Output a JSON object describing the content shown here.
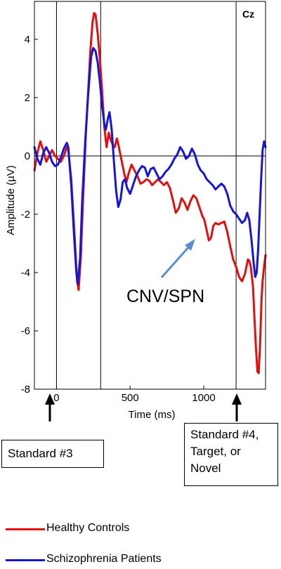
{
  "chart_data": {
    "type": "line",
    "panel_label": "Cz",
    "xlabel": "Time (ms)",
    "ylabel": "Amplitude (µV)",
    "xlim": [
      -150,
      1420
    ],
    "ylim": [
      -8,
      5.3
    ],
    "x_ticks": [
      0,
      500,
      1000
    ],
    "y_ticks": [
      4,
      2,
      0,
      -2,
      -4,
      -6,
      -8
    ],
    "vertical_lines": [
      0,
      300,
      1220
    ],
    "annotation": "CNV/SPN",
    "series": [
      {
        "name": "Healthy Controls",
        "color": "#e01010",
        "points": [
          [
            -150,
            -0.5
          ],
          [
            -130,
            0.1
          ],
          [
            -110,
            0.5
          ],
          [
            -90,
            0.2
          ],
          [
            -70,
            -0.2
          ],
          [
            -50,
            0.0
          ],
          [
            -30,
            0.2
          ],
          [
            -10,
            0.0
          ],
          [
            10,
            -0.1
          ],
          [
            30,
            -0.2
          ],
          [
            50,
            0.0
          ],
          [
            70,
            0.3
          ],
          [
            80,
            0.2
          ],
          [
            100,
            -0.8
          ],
          [
            120,
            -2.5
          ],
          [
            140,
            -4.3
          ],
          [
            150,
            -4.6
          ],
          [
            165,
            -3.5
          ],
          [
            180,
            -1.5
          ],
          [
            200,
            0.8
          ],
          [
            215,
            2.2
          ],
          [
            230,
            3.6
          ],
          [
            245,
            4.6
          ],
          [
            255,
            4.9
          ],
          [
            265,
            4.85
          ],
          [
            280,
            4.2
          ],
          [
            295,
            3.3
          ],
          [
            310,
            2.2
          ],
          [
            325,
            1.0
          ],
          [
            340,
            0.3
          ],
          [
            355,
            0.8
          ],
          [
            365,
            0.6
          ],
          [
            380,
            0.4
          ],
          [
            395,
            0.3
          ],
          [
            410,
            0.6
          ],
          [
            420,
            0.4
          ],
          [
            440,
            -0.1
          ],
          [
            460,
            -0.6
          ],
          [
            475,
            -0.9
          ],
          [
            490,
            -0.6
          ],
          [
            510,
            -0.3
          ],
          [
            530,
            -0.5
          ],
          [
            550,
            -0.7
          ],
          [
            570,
            -0.95
          ],
          [
            590,
            -0.9
          ],
          [
            610,
            -0.8
          ],
          [
            630,
            -0.85
          ],
          [
            650,
            -1.0
          ],
          [
            670,
            -0.9
          ],
          [
            690,
            -0.8
          ],
          [
            710,
            -0.9
          ],
          [
            730,
            -1.0
          ],
          [
            750,
            -0.9
          ],
          [
            770,
            -1.1
          ],
          [
            790,
            -1.5
          ],
          [
            810,
            -1.95
          ],
          [
            830,
            -1.8
          ],
          [
            850,
            -1.45
          ],
          [
            870,
            -1.6
          ],
          [
            890,
            -1.85
          ],
          [
            910,
            -1.55
          ],
          [
            930,
            -1.35
          ],
          [
            950,
            -1.45
          ],
          [
            970,
            -1.75
          ],
          [
            990,
            -2.05
          ],
          [
            1005,
            -2.2
          ],
          [
            1020,
            -2.55
          ],
          [
            1035,
            -2.9
          ],
          [
            1050,
            -2.8
          ],
          [
            1065,
            -2.4
          ],
          [
            1080,
            -2.3
          ],
          [
            1100,
            -2.35
          ],
          [
            1120,
            -2.3
          ],
          [
            1140,
            -2.25
          ],
          [
            1160,
            -2.6
          ],
          [
            1180,
            -3.1
          ],
          [
            1200,
            -3.55
          ],
          [
            1220,
            -3.8
          ],
          [
            1240,
            -4.15
          ],
          [
            1260,
            -4.3
          ],
          [
            1280,
            -4.05
          ],
          [
            1300,
            -3.55
          ],
          [
            1310,
            -3.6
          ],
          [
            1320,
            -3.8
          ],
          [
            1335,
            -4.5
          ],
          [
            1345,
            -5.6
          ],
          [
            1355,
            -6.6
          ],
          [
            1365,
            -7.4
          ],
          [
            1373,
            -7.45
          ],
          [
            1383,
            -6.5
          ],
          [
            1393,
            -4.9
          ],
          [
            1400,
            -4.3
          ],
          [
            1410,
            -3.8
          ],
          [
            1420,
            -3.4
          ]
        ]
      },
      {
        "name": "Schizophrenia Patients",
        "color": "#1515d8",
        "points": [
          [
            -150,
            0.3
          ],
          [
            -130,
            -0.1
          ],
          [
            -110,
            -0.3
          ],
          [
            -90,
            0.1
          ],
          [
            -70,
            0.3
          ],
          [
            -50,
            0.1
          ],
          [
            -30,
            -0.2
          ],
          [
            -10,
            -0.35
          ],
          [
            10,
            -0.3
          ],
          [
            30,
            -0.05
          ],
          [
            50,
            0.25
          ],
          [
            70,
            0.45
          ],
          [
            80,
            0.3
          ],
          [
            100,
            -1.0
          ],
          [
            120,
            -2.8
          ],
          [
            135,
            -4.0
          ],
          [
            145,
            -4.4
          ],
          [
            160,
            -3.5
          ],
          [
            175,
            -1.5
          ],
          [
            195,
            0.5
          ],
          [
            215,
            2.1
          ],
          [
            235,
            3.4
          ],
          [
            250,
            3.7
          ],
          [
            265,
            3.6
          ],
          [
            280,
            3.2
          ],
          [
            295,
            2.5
          ],
          [
            310,
            1.7
          ],
          [
            325,
            1.1
          ],
          [
            335,
            0.9
          ],
          [
            350,
            1.3
          ],
          [
            360,
            1.5
          ],
          [
            375,
            0.9
          ],
          [
            390,
            -0.2
          ],
          [
            405,
            -1.2
          ],
          [
            420,
            -1.75
          ],
          [
            435,
            -1.5
          ],
          [
            450,
            -0.9
          ],
          [
            465,
            -0.8
          ],
          [
            480,
            -1.1
          ],
          [
            500,
            -1.3
          ],
          [
            520,
            -1.0
          ],
          [
            540,
            -0.7
          ],
          [
            560,
            -0.5
          ],
          [
            580,
            -0.35
          ],
          [
            600,
            -0.4
          ],
          [
            620,
            -0.7
          ],
          [
            640,
            -0.45
          ],
          [
            660,
            -0.4
          ],
          [
            680,
            -0.6
          ],
          [
            700,
            -0.8
          ],
          [
            720,
            -0.7
          ],
          [
            740,
            -0.55
          ],
          [
            760,
            -0.45
          ],
          [
            780,
            -0.3
          ],
          [
            800,
            -0.1
          ],
          [
            820,
            0.05
          ],
          [
            840,
            0.3
          ],
          [
            860,
            0.15
          ],
          [
            880,
            -0.1
          ],
          [
            900,
            0.0
          ],
          [
            920,
            0.25
          ],
          [
            940,
            0.05
          ],
          [
            960,
            -0.3
          ],
          [
            980,
            -0.5
          ],
          [
            1000,
            -0.6
          ],
          [
            1020,
            -0.8
          ],
          [
            1040,
            -0.9
          ],
          [
            1060,
            -1.0
          ],
          [
            1080,
            -1.15
          ],
          [
            1100,
            -1.05
          ],
          [
            1120,
            -0.95
          ],
          [
            1140,
            -1.05
          ],
          [
            1160,
            -1.3
          ],
          [
            1180,
            -1.7
          ],
          [
            1200,
            -1.9
          ],
          [
            1220,
            -2.0
          ],
          [
            1240,
            -2.15
          ],
          [
            1260,
            -2.3
          ],
          [
            1280,
            -2.2
          ],
          [
            1295,
            -1.95
          ],
          [
            1310,
            -2.2
          ],
          [
            1325,
            -2.9
          ],
          [
            1340,
            -3.7
          ],
          [
            1350,
            -4.15
          ],
          [
            1360,
            -4.0
          ],
          [
            1370,
            -3.2
          ],
          [
            1380,
            -2.0
          ],
          [
            1390,
            -0.8
          ],
          [
            1400,
            0.2
          ],
          [
            1410,
            0.5
          ],
          [
            1420,
            0.3
          ]
        ]
      }
    ]
  },
  "callouts": {
    "standard3": "Standard #3",
    "standard4": "Standard #4, Target, or Novel"
  }
}
